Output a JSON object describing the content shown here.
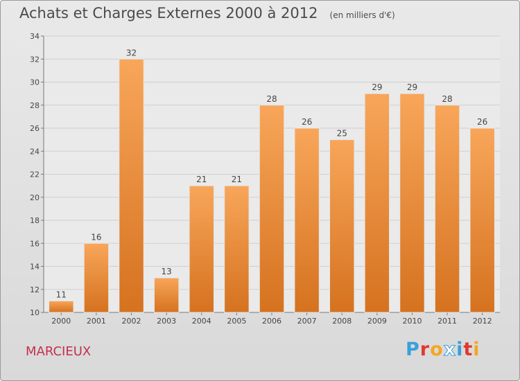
{
  "header": {
    "title": "Achats et Charges Externes 2000 à 2012",
    "unit": "(en milliers d'€)"
  },
  "footer": {
    "commune": "MARCIEUX",
    "logo_text": "Proxiti"
  },
  "colors": {
    "bar_light": "#f8a65a",
    "bar_dark": "#d5721f",
    "commune_text": "#c4304e"
  },
  "chart_data": {
    "type": "bar",
    "categories": [
      "2000",
      "2001",
      "2002",
      "2003",
      "2004",
      "2005",
      "2006",
      "2007",
      "2008",
      "2009",
      "2010",
      "2011",
      "2012"
    ],
    "values": [
      11,
      16,
      32,
      13,
      21,
      21,
      28,
      26,
      25,
      29,
      29,
      28,
      26
    ],
    "title": "Achats et Charges Externes 2000 à 2012",
    "ylim": [
      10,
      34
    ],
    "yticks": [
      10,
      12,
      14,
      16,
      18,
      20,
      22,
      24,
      26,
      28,
      30,
      32,
      34
    ],
    "grid": true,
    "data_labels": true
  }
}
